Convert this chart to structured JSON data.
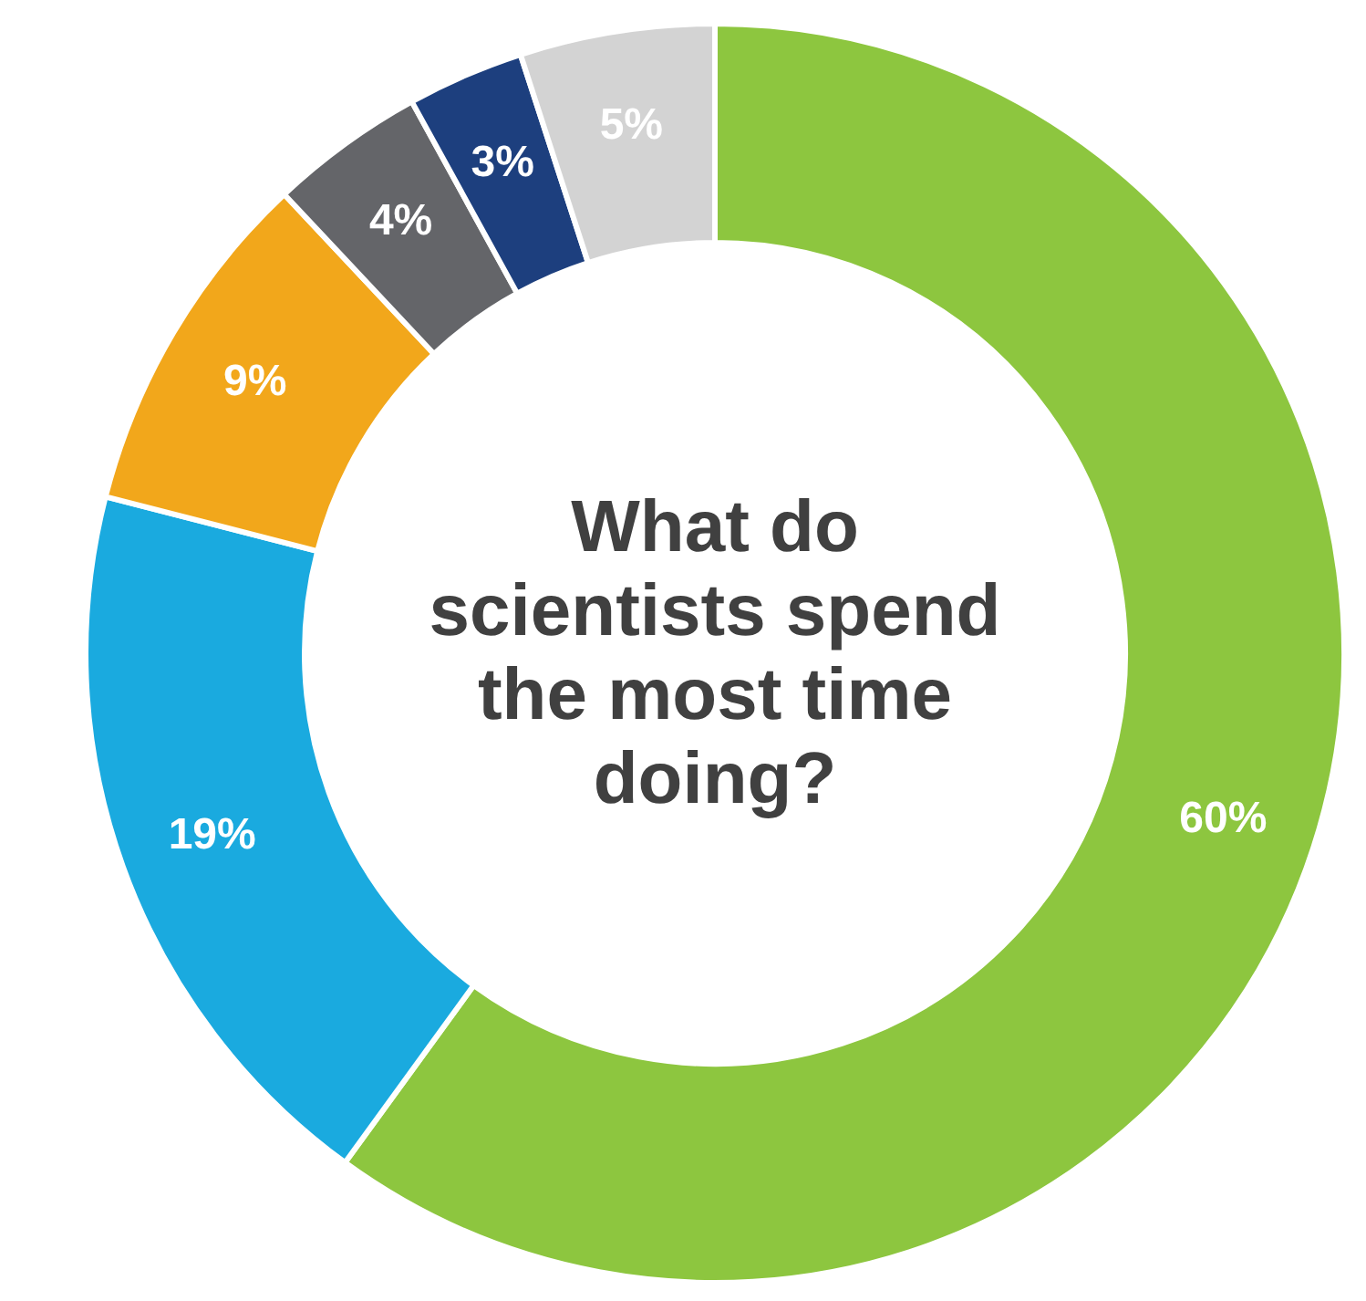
{
  "chart_data": {
    "type": "donut",
    "title": "What do scientists spend the most time doing?",
    "categories": [
      null,
      null,
      null,
      null,
      null,
      null
    ],
    "values": [
      60,
      19,
      9,
      4,
      3,
      5
    ],
    "colors": [
      "#8dc63f",
      "#1aaadf",
      "#f2a71b",
      "#646569",
      "#1d3f7e",
      "#d3d3d3"
    ],
    "value_labels": [
      "60%",
      "19%",
      "9%",
      "4%",
      "3%",
      "5%"
    ]
  }
}
